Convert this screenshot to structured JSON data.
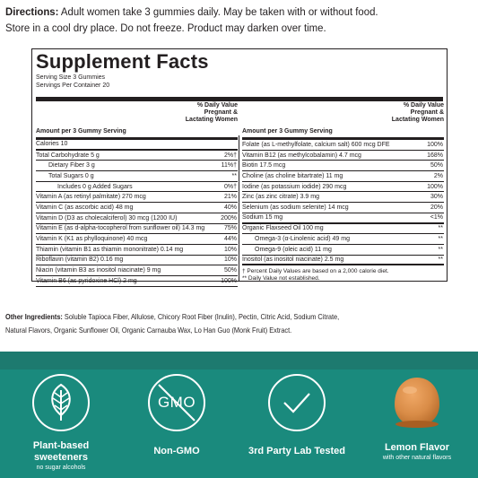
{
  "directions": {
    "label": "Directions:",
    "line1": " Adult women take 3 gummies daily. May be taken with or without food.",
    "line2": "Store in a cool dry place. Do not freeze. Product may darken over time."
  },
  "facts": {
    "title": "Supplement Facts",
    "serving_size": "Serving Size 3 Gummies",
    "servings_per_container": "Servings Per Container 20",
    "dv_header_line1": "% Daily Value",
    "dv_header_line2": "Pregnant &",
    "dv_header_line3": "Lactating Women",
    "amount_header": "Amount per 3 Gummy Serving",
    "left_rows": [
      {
        "name": "Calories 10",
        "pct": ""
      },
      {
        "name": "Total Carbohydrate 5 g",
        "pct": "2%†"
      },
      {
        "name": "Dietary Fiber 3 g",
        "pct": "11%†"
      },
      {
        "name": "Total Sugars 0 g",
        "pct": "**"
      },
      {
        "name": "Includes 0 g Added Sugars",
        "pct": "0%†"
      },
      {
        "name": "Vitamin A (as retinyl palmitate) 270 mcg",
        "pct": "21%"
      },
      {
        "name": "Vitamin C (as ascorbic acid) 48 mg",
        "pct": "40%"
      },
      {
        "name": "Vitamin D (D3 as cholecalciferol) 30 mcg (1200 IU)",
        "pct": "200%"
      },
      {
        "name": "Vitamin E (as d-alpha-tocopherol from sunflower oil) 14.3 mg",
        "pct": "75%"
      },
      {
        "name": "Vitamin K (K1 as phylloquinone) 40 mcg",
        "pct": "44%"
      },
      {
        "name": "Thiamin (vitamin B1 as thiamin mononitrate) 0.14 mg",
        "pct": "10%"
      },
      {
        "name": "Riboflavin (vitamin B2) 0.16 mg",
        "pct": "10%"
      },
      {
        "name": "Niacin (vitamin B3 as inositol niacinate) 9 mg",
        "pct": "50%"
      },
      {
        "name": "Vitamin B6 (as pyridoxine HCl) 2 mg",
        "pct": "100%"
      }
    ],
    "right_rows": [
      {
        "name": "Folate (as L-methylfolate, calcium salt) 600 mcg DFE",
        "pct": "100%"
      },
      {
        "name": "Vitamin B12 (as methylcobalamin) 4.7 mcg",
        "pct": "168%"
      },
      {
        "name": "Biotin 17.5 mcg",
        "pct": "50%"
      },
      {
        "name": "Choline (as choline bitartrate) 11 mg",
        "pct": "2%"
      },
      {
        "name": "Iodine (as potassium iodide) 290 mcg",
        "pct": "100%"
      },
      {
        "name": "Zinc (as zinc citrate) 3.9 mg",
        "pct": "30%"
      },
      {
        "name": "Selenium (as sodium selenite) 14 mcg",
        "pct": "20%"
      },
      {
        "name": "Sodium 15 mg",
        "pct": "<1%"
      },
      {
        "name": "Organic Flaxseed Oil 100 mg",
        "pct": "**"
      },
      {
        "name": "Omega-3 (α-Linolenic acid) 49 mg",
        "pct": "**"
      },
      {
        "name": "Omega-9 (oleic acid) 11 mg",
        "pct": "**"
      },
      {
        "name": "Inositol (as inositol niacinate) 2.5 mg",
        "pct": "**"
      }
    ],
    "footnote1": "† Percent Daily Values are based on a 2,000 calorie diet.",
    "footnote2": "** Daily Value not established."
  },
  "other": {
    "label": "Other Ingredients:",
    "line1": " Soluble Tapioca Fiber, Allulose, Chicory Root Fiber (Inulin), Pectin, Citric Acid, Sodium Citrate,",
    "line2": "Natural Flavors, Organic Sunflower Oil, Organic Carnauba Wax, Lo Han Guo (Monk Fruit) Extract."
  },
  "badges": [
    {
      "icon": "leaf-icon",
      "label1": "Plant-based",
      "label2": "sweeteners",
      "sub": "no sugar alcohols"
    },
    {
      "icon": "no-gmo-icon",
      "label1": "Non-GMO",
      "label2": "",
      "sub": "",
      "icon_text": "GMO"
    },
    {
      "icon": "checkmark-icon",
      "label1": "3rd Party Lab Tested",
      "label2": "",
      "sub": ""
    },
    {
      "icon": "gummy-icon",
      "label1": "Lemon Flavor",
      "label2": "",
      "sub": "with other natural flavors"
    }
  ],
  "colors": {
    "band": "#1a8a7d",
    "band_top": "#1d7a6f",
    "gummy": "#d98c47"
  }
}
